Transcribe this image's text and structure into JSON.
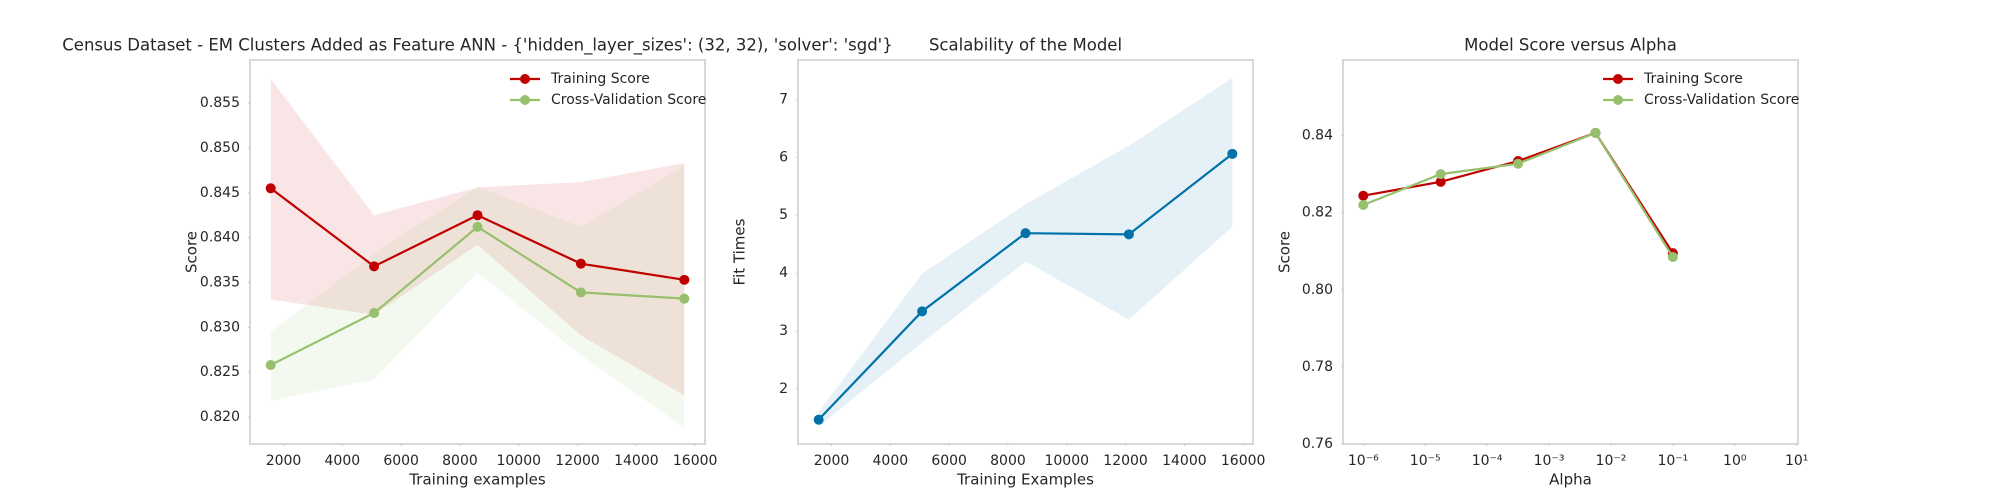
{
  "chart_data": [
    {
      "type": "line",
      "title": "Census Dataset - EM Clusters Added as Feature ANN - {'hidden_layer_sizes': (32, 32), 'solver': 'sgd'}",
      "xlabel": "Training examples",
      "ylabel": "Score",
      "x": [
        1563,
        5080,
        8597,
        12114,
        15631
      ],
      "series": [
        {
          "name": "Training Score",
          "color": "#c00000",
          "values": [
            0.8455,
            0.8368,
            0.8425,
            0.8371,
            0.8353
          ],
          "upper": [
            0.8577,
            0.8425,
            0.8456,
            0.8462,
            0.8483
          ],
          "lower": [
            0.8331,
            0.8314,
            0.8392,
            0.8291,
            0.8224
          ]
        },
        {
          "name": "Cross-Validation Score",
          "color": "#97c06e",
          "values": [
            0.8258,
            0.8316,
            0.8412,
            0.8339,
            0.8332
          ],
          "upper": [
            0.8295,
            0.8382,
            0.8457,
            0.8412,
            0.848
          ],
          "lower": [
            0.8218,
            0.8242,
            0.8361,
            0.8269,
            0.8188
          ]
        }
      ],
      "xlim": [
        860,
        16334
      ],
      "ylim": [
        0.817,
        0.8598
      ],
      "xticks": [
        2000,
        4000,
        6000,
        8000,
        10000,
        12000,
        14000,
        16000
      ],
      "yticks": [
        {
          "value": 0.82,
          "label": "0.820"
        },
        0.825,
        {
          "value": 0.83,
          "label": "0.830"
        },
        0.835,
        {
          "value": 0.84,
          "label": "0.840"
        },
        0.845,
        {
          "value": 0.85,
          "label": "0.850"
        },
        0.855
      ],
      "legend": "upper right",
      "grid": false
    },
    {
      "type": "line",
      "title": "Scalability of the Model",
      "xlabel": "Training Examples",
      "ylabel": "Fit Times",
      "x": [
        1563,
        5080,
        8597,
        12114,
        15631
      ],
      "series": [
        {
          "color": "#0072a8",
          "values": [
            1.47,
            3.34,
            4.69,
            4.67,
            6.06
          ],
          "upper": [
            1.6,
            3.99,
            5.19,
            6.2,
            7.37
          ],
          "lower": [
            1.35,
            2.8,
            4.2,
            3.2,
            4.8
          ]
        }
      ],
      "xlim": [
        860,
        16334
      ],
      "ylim": [
        1.05,
        7.68
      ],
      "xticks": [
        2000,
        4000,
        6000,
        8000,
        10000,
        12000,
        14000,
        16000
      ],
      "yticks": [
        2,
        3,
        4,
        5,
        6,
        7
      ],
      "grid": false
    },
    {
      "type": "line",
      "title": "Model Score versus Alpha",
      "xlabel": "Alpha",
      "ylabel": "Score",
      "x": [
        1e-06,
        1.778e-05,
        0.0003162,
        0.005623,
        0.1
      ],
      "series": [
        {
          "name": "Training Score",
          "color": "#c00000",
          "values": [
            0.8244,
            0.828,
            0.8334,
            0.8407,
            0.8095
          ]
        },
        {
          "name": "Cross-Validation Score",
          "color": "#97c06e",
          "values": [
            0.822,
            0.83,
            0.8327,
            0.8407,
            0.8085
          ]
        }
      ],
      "xscale": "log",
      "xlim": [
        4.7e-07,
        10.5
      ],
      "ylim": [
        0.76,
        0.8596
      ],
      "xticks": [
        {
          "value": 1e-06,
          "label": "10⁻⁶"
        },
        {
          "value": 1e-05,
          "label": "10⁻⁵"
        },
        {
          "value": 0.0001,
          "label": "10⁻⁴"
        },
        {
          "value": 0.001,
          "label": "10⁻³"
        },
        {
          "value": 0.01,
          "label": "10⁻²"
        },
        {
          "value": 0.1,
          "label": "10⁻¹"
        },
        {
          "value": 1,
          "label": "10⁰"
        },
        {
          "value": 10,
          "label": "10¹"
        }
      ],
      "yticks": [
        0.76,
        0.78,
        {
          "value": 0.8,
          "label": "0.80"
        },
        0.82,
        0.84
      ],
      "legend": "upper right",
      "grid": false
    }
  ]
}
